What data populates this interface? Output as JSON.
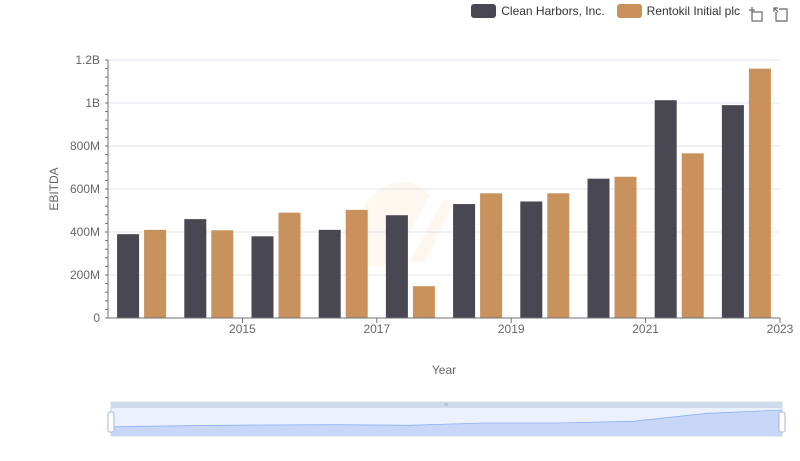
{
  "legend": {
    "items": [
      {
        "label": "Clean Harbors, Inc.",
        "color": "#494852"
      },
      {
        "label": "Rentokil Initial plc",
        "color": "#c9925c"
      }
    ]
  },
  "toolbox": {
    "zoom_icon": "zoom-select-icon",
    "reset_icon": "restore-icon"
  },
  "chart_data": {
    "type": "bar",
    "categories": [
      "2014",
      "2015",
      "2016",
      "2017",
      "2018",
      "2019",
      "2020",
      "2021",
      "2022",
      "2023"
    ],
    "x_tick_labels": [
      "",
      "2015",
      "",
      "2017",
      "",
      "2019",
      "",
      "2021",
      "",
      "2023"
    ],
    "series": [
      {
        "name": "Clean Harbors, Inc.",
        "color": "#494852",
        "values": [
          390000000,
          460000000,
          380000000,
          410000000,
          478000000,
          530000000,
          542000000,
          648000000,
          1013000000,
          990000000
        ]
      },
      {
        "name": "Rentokil Initial plc",
        "color": "#c9925c",
        "values": [
          410000000,
          408000000,
          490000000,
          503000000,
          148000000,
          580000000,
          580000000,
          657000000,
          766000000,
          1160000000
        ]
      }
    ],
    "xlabel": "Year",
    "ylabel": "EBITDA",
    "ylim": [
      0,
      1200000000
    ],
    "y_ticks": [
      0,
      200000000,
      400000000,
      600000000,
      800000000,
      1000000000,
      1200000000
    ],
    "y_tick_labels": [
      "0",
      "200M",
      "400M",
      "600M",
      "800M",
      "1B",
      "1.2B"
    ],
    "grid": true,
    "legend_position": "top-right",
    "data_zoom": {
      "range": [
        0,
        100
      ]
    }
  }
}
